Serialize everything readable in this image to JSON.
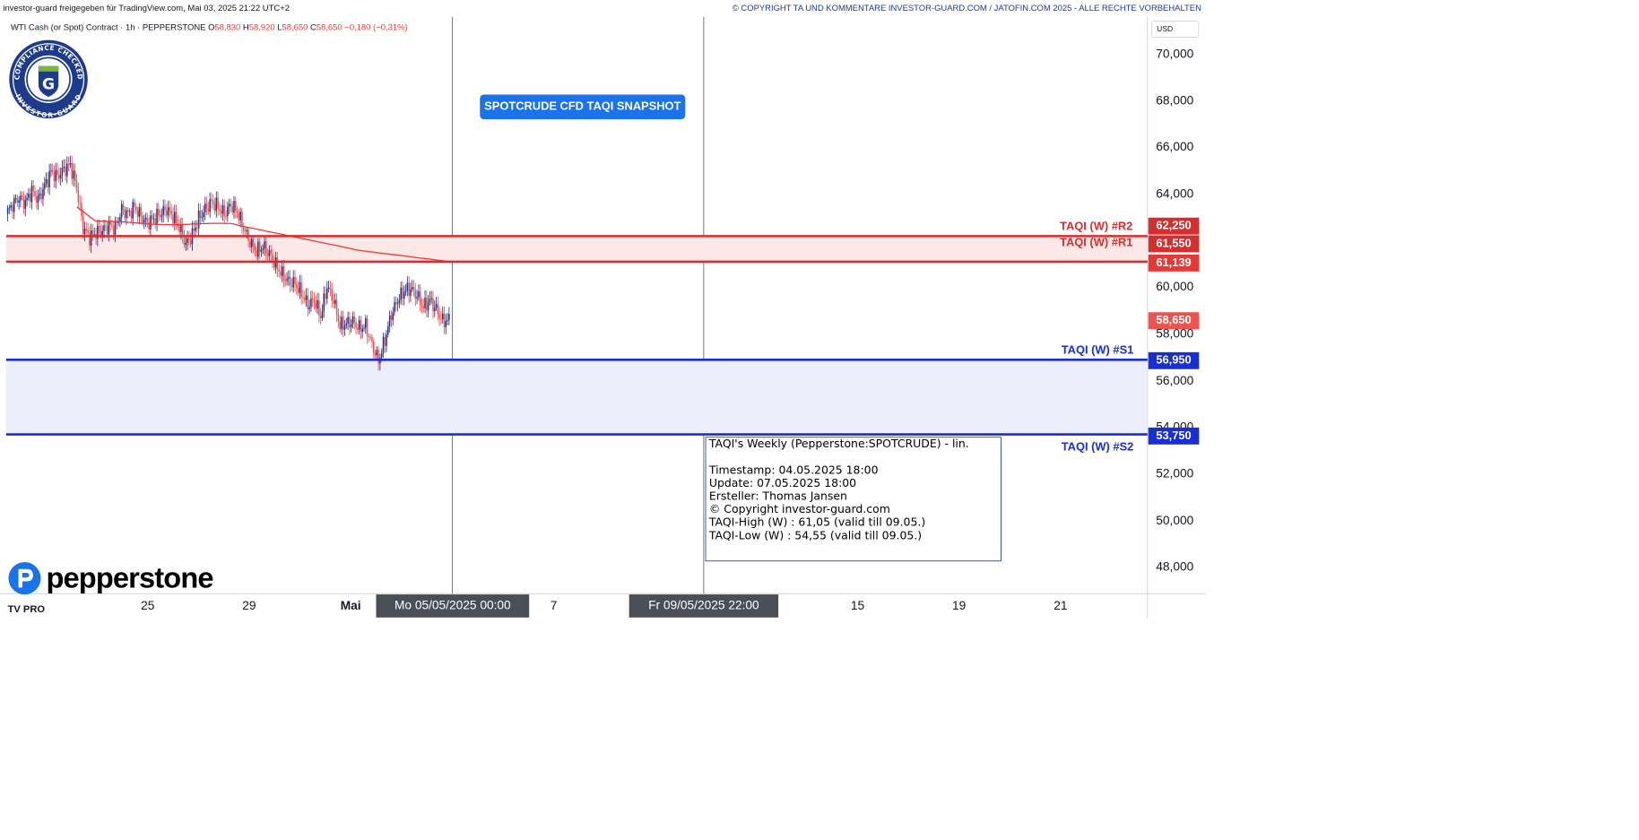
{
  "header": {
    "published": "investor-guard freigegeben für TradingView.com, Mai 03, 2025 21:22 UTC+2",
    "copyright": "© COPYRIGHT TA UND KOMMENTARE INVESTOR-GUARD.COM / JATOFIN.COM 2025 - ALLE RECHTE VORBEHALTEN"
  },
  "legend": {
    "symbol": "WTI Cash (or Spot) Contract · 1h · PEPPERSTONE",
    "o_label": "O",
    "o": "58,830",
    "h_label": "H",
    "h": "58,920",
    "l_label": "L",
    "l": "58,650",
    "c_label": "C",
    "c": "58,650",
    "chg": "−0,180 (−0,31%)"
  },
  "badge": {
    "top_text": "COMPLIANCE CHECKED",
    "bottom_text": "INVESTOR-GUARD",
    "letter": "G"
  },
  "snapshot_label": "SPOTCRUDE CFD TAQI SNAPSHOT",
  "info_box": {
    "title": "TAQI's Weekly (Pepperstone:SPOTCRUDE) - lin.",
    "timestamp": "Timestamp: 04.05.2025 18:00",
    "update": "Update: 07.05.2025 18:00",
    "author": "Ersteller: Thomas Jansen",
    "copyright": "© Copyright investor-guard.com",
    "taqi_high": "TAQI-High (W) : 61,05 (valid till 09.05.)",
    "taqi_low": "TAQI-Low (W) : 54,55 (valid till 09.05.)"
  },
  "levels": {
    "r2": {
      "label": "TAQI (W) #R2",
      "price": "62,250",
      "value": 62.25,
      "color": "#d32f2f"
    },
    "r1": {
      "label": "TAQI (W) #R1",
      "price": "61,550",
      "value": 61.55,
      "color": "#d32f2f"
    },
    "vwap": {
      "price": "61,139",
      "value": 61.139,
      "color": "#e53935"
    },
    "last": {
      "price": "58,650",
      "value": 58.65,
      "color": "#ef5350"
    },
    "s1": {
      "label": "TAQI (W) #S1",
      "price": "56,950",
      "value": 56.95,
      "color": "#1a2fd1"
    },
    "s2": {
      "label": "TAQI (W) #S2",
      "price": "53,750",
      "value": 53.75,
      "color": "#1a2fd1"
    }
  },
  "axis": {
    "currency": "USD",
    "y_ticks": [
      "70,000",
      "68,000",
      "66,000",
      "64,000",
      "62,000",
      "60,000",
      "58,000",
      "56,000",
      "54,000",
      "52,000",
      "50,000",
      "48,000"
    ],
    "x_ticks": [
      "25",
      "29",
      "Mai",
      "7",
      "15",
      "19",
      "21"
    ],
    "cursor_x1": "Mo 05/05/2025    00:00",
    "cursor_x2": "Fr 09/05/2025    22:00"
  },
  "brand": {
    "name": "pepperstone",
    "tv": "TV PRO"
  },
  "chart_data": {
    "type": "candlestick",
    "symbol": "WTI Cash (or Spot) Contract",
    "interval": "1h",
    "ylim": [
      47,
      71.5
    ],
    "close_path": [
      63.2,
      63.6,
      63.9,
      63.7,
      64.2,
      63.8,
      64.4,
      65.0,
      64.8,
      65.1,
      65.3,
      64.3,
      62.6,
      62.2,
      62.4,
      62.5,
      62.7,
      62.6,
      63.4,
      63.2,
      63.5,
      63.1,
      62.8,
      63.0,
      63.2,
      63.4,
      63.1,
      62.6,
      61.9,
      62.3,
      63.0,
      63.4,
      63.7,
      63.5,
      63.2,
      63.6,
      63.3,
      62.6,
      62.0,
      61.6,
      61.8,
      61.5,
      61.0,
      60.6,
      60.3,
      60.2,
      59.8,
      59.3,
      59.5,
      58.8,
      60.1,
      59.5,
      58.4,
      58.5,
      58.6,
      58.3,
      58.4,
      57.6,
      56.9,
      57.8,
      58.9,
      59.5,
      59.9,
      60.0,
      59.7,
      59.2,
      59.5,
      59.1,
      58.6,
      58.65
    ]
  }
}
